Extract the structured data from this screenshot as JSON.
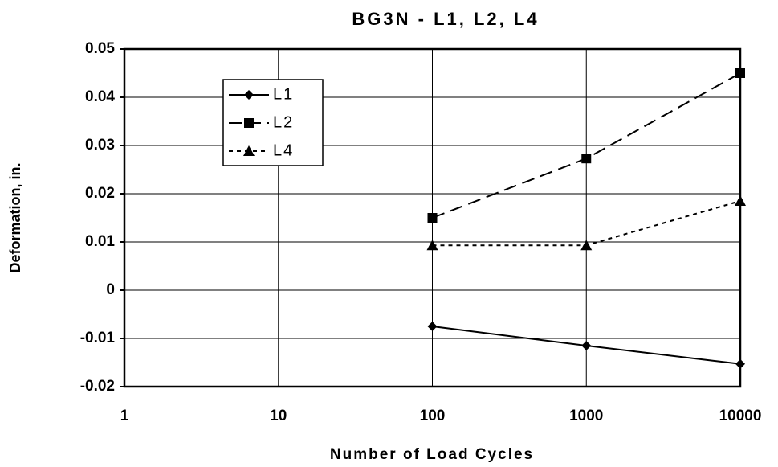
{
  "chart_data": {
    "type": "line",
    "title": "BG3N - L1, L2, L4",
    "xlabel": "Number of Load Cycles",
    "ylabel": "Deformation, in.",
    "xscale": "log",
    "xlim": [
      1,
      10000
    ],
    "xticks": [
      1,
      10,
      100,
      1000,
      10000
    ],
    "ylim": [
      -0.02,
      0.05
    ],
    "yticks": [
      -0.02,
      -0.01,
      0,
      0.01,
      0.02,
      0.03,
      0.04,
      0.05
    ],
    "grid": true,
    "legend": "upper left",
    "x": [
      100,
      1000,
      10000
    ],
    "series": [
      {
        "name": "L1",
        "color": "#000000",
        "marker": "diamond",
        "dash": "solid",
        "values": [
          -0.0075,
          -0.0115,
          -0.0153
        ]
      },
      {
        "name": "L2",
        "color": "#000000",
        "marker": "square",
        "dash": "long",
        "values": [
          0.015,
          0.0273,
          0.045
        ]
      },
      {
        "name": "L4",
        "color": "#000000",
        "marker": "triangle",
        "dash": "short",
        "values": [
          0.0093,
          0.0093,
          0.0185
        ]
      }
    ]
  }
}
